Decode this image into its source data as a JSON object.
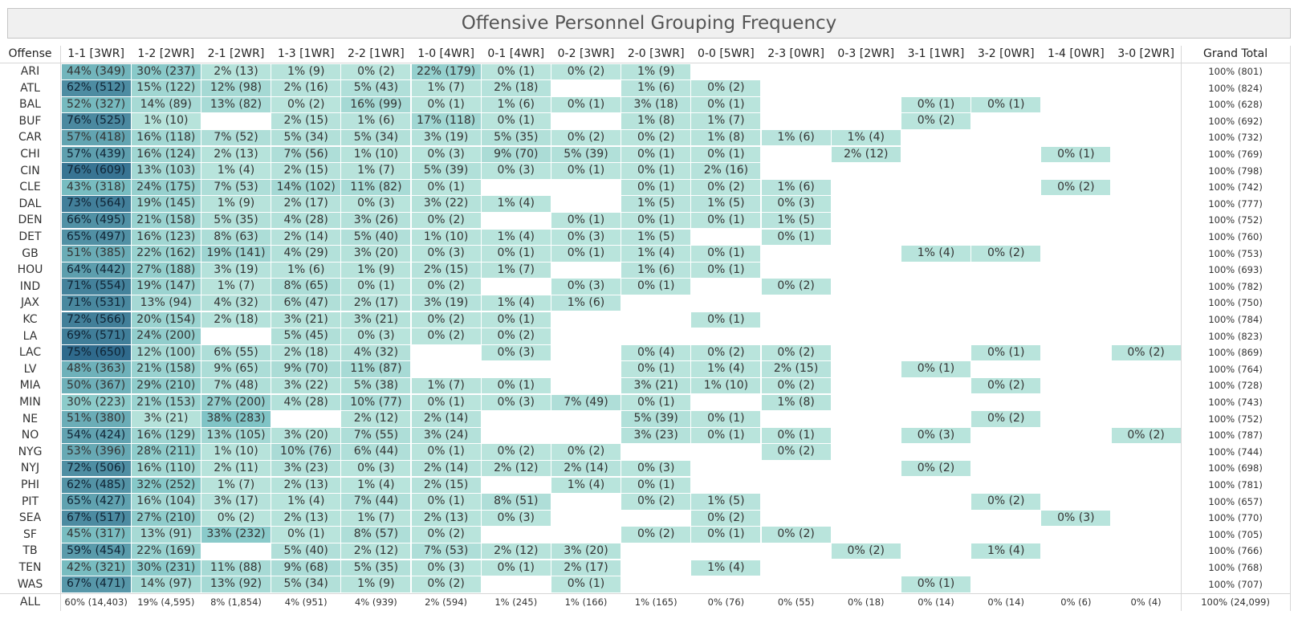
{
  "chart_data": {
    "type": "heatmap",
    "title": "Offensive Personnel Grouping Frequency",
    "row_header": "Offense",
    "columns": [
      "1-1 [3WR]",
      "1-2 [2WR]",
      "2-1 [2WR]",
      "1-3 [1WR]",
      "2-2 [1WR]",
      "1-0 [4WR]",
      "0-1 [4WR]",
      "0-2 [3WR]",
      "2-0 [3WR]",
      "0-0 [5WR]",
      "2-3 [0WR]",
      "0-3 [2WR]",
      "3-1 [1WR]",
      "3-2 [0WR]",
      "1-4 [0WR]",
      "3-0 [2WR]"
    ],
    "total_header": "Grand Total",
    "rows": [
      {
        "team": "ARI",
        "cells": [
          "44% (349)",
          "30% (237)",
          "2% (13)",
          "1% (9)",
          "0% (2)",
          "22% (179)",
          "0% (1)",
          "0% (2)",
          "1% (9)",
          "",
          "",
          "",
          "",
          "",
          "",
          ""
        ],
        "total": "100% (801)"
      },
      {
        "team": "ATL",
        "cells": [
          "62% (512)",
          "15% (122)",
          "12% (98)",
          "2% (16)",
          "5% (43)",
          "1% (7)",
          "2% (18)",
          "",
          "1% (6)",
          "0% (2)",
          "",
          "",
          "",
          "",
          "",
          ""
        ],
        "total": "100% (824)"
      },
      {
        "team": "BAL",
        "cells": [
          "52% (327)",
          "14% (89)",
          "13% (82)",
          "0% (2)",
          "16% (99)",
          "0% (1)",
          "1% (6)",
          "0% (1)",
          "3% (18)",
          "0% (1)",
          "",
          "",
          "0% (1)",
          "0% (1)",
          "",
          ""
        ],
        "total": "100% (628)"
      },
      {
        "team": "BUF",
        "cells": [
          "76% (525)",
          "1% (10)",
          "",
          "2% (15)",
          "1% (6)",
          "17% (118)",
          "0% (1)",
          "",
          "1% (8)",
          "1% (7)",
          "",
          "",
          "0% (2)",
          "",
          "",
          ""
        ],
        "total": "100% (692)"
      },
      {
        "team": "CAR",
        "cells": [
          "57% (418)",
          "16% (118)",
          "7% (52)",
          "5% (34)",
          "5% (34)",
          "3% (19)",
          "5% (35)",
          "0% (2)",
          "0% (2)",
          "1% (8)",
          "1% (6)",
          "1% (4)",
          "",
          "",
          "",
          ""
        ],
        "total": "100% (732)"
      },
      {
        "team": "CHI",
        "cells": [
          "57% (439)",
          "16% (124)",
          "2% (13)",
          "7% (56)",
          "1% (10)",
          "0% (3)",
          "9% (70)",
          "5% (39)",
          "0% (1)",
          "0% (1)",
          "",
          "2% (12)",
          "",
          "",
          "0% (1)",
          ""
        ],
        "total": "100% (769)"
      },
      {
        "team": "CIN",
        "cells": [
          "76% (609)",
          "13% (103)",
          "1% (4)",
          "2% (15)",
          "1% (7)",
          "5% (39)",
          "0% (3)",
          "0% (1)",
          "0% (1)",
          "2% (16)",
          "",
          "",
          "",
          "",
          "",
          ""
        ],
        "total": "100% (798)"
      },
      {
        "team": "CLE",
        "cells": [
          "43% (318)",
          "24% (175)",
          "7% (53)",
          "14% (102)",
          "11% (82)",
          "0% (1)",
          "",
          "",
          "0% (1)",
          "0% (2)",
          "1% (6)",
          "",
          "",
          "",
          "0% (2)",
          ""
        ],
        "total": "100% (742)"
      },
      {
        "team": "DAL",
        "cells": [
          "73% (564)",
          "19% (145)",
          "1% (9)",
          "2% (17)",
          "0% (3)",
          "3% (22)",
          "1% (4)",
          "",
          "1% (5)",
          "1% (5)",
          "0% (3)",
          "",
          "",
          "",
          "",
          ""
        ],
        "total": "100% (777)"
      },
      {
        "team": "DEN",
        "cells": [
          "66% (495)",
          "21% (158)",
          "5% (35)",
          "4% (28)",
          "3% (26)",
          "0% (2)",
          "",
          "0% (1)",
          "0% (1)",
          "0% (1)",
          "1% (5)",
          "",
          "",
          "",
          "",
          ""
        ],
        "total": "100% (752)"
      },
      {
        "team": "DET",
        "cells": [
          "65% (497)",
          "16% (123)",
          "8% (63)",
          "2% (14)",
          "5% (40)",
          "1% (10)",
          "1% (4)",
          "0% (3)",
          "1% (5)",
          "",
          "0% (1)",
          "",
          "",
          "",
          "",
          ""
        ],
        "total": "100% (760)"
      },
      {
        "team": "GB",
        "cells": [
          "51% (385)",
          "22% (162)",
          "19% (141)",
          "4% (29)",
          "3% (20)",
          "0% (3)",
          "0% (1)",
          "0% (1)",
          "1% (4)",
          "0% (1)",
          "",
          "",
          "1% (4)",
          "0% (2)",
          "",
          ""
        ],
        "total": "100% (753)"
      },
      {
        "team": "HOU",
        "cells": [
          "64% (442)",
          "27% (188)",
          "3% (19)",
          "1% (6)",
          "1% (9)",
          "2% (15)",
          "1% (7)",
          "",
          "1% (6)",
          "0% (1)",
          "",
          "",
          "",
          "",
          "",
          ""
        ],
        "total": "100% (693)"
      },
      {
        "team": "IND",
        "cells": [
          "71% (554)",
          "19% (147)",
          "1% (7)",
          "8% (65)",
          "0% (1)",
          "0% (2)",
          "",
          "0% (3)",
          "0% (1)",
          "",
          "0% (2)",
          "",
          "",
          "",
          "",
          ""
        ],
        "total": "100% (782)"
      },
      {
        "team": "JAX",
        "cells": [
          "71% (531)",
          "13% (94)",
          "4% (32)",
          "6% (47)",
          "2% (17)",
          "3% (19)",
          "1% (4)",
          "1% (6)",
          "",
          "",
          "",
          "",
          "",
          "",
          "",
          ""
        ],
        "total": "100% (750)"
      },
      {
        "team": "KC",
        "cells": [
          "72% (566)",
          "20% (154)",
          "2% (18)",
          "3% (21)",
          "3% (21)",
          "0% (2)",
          "0% (1)",
          "",
          "",
          "0% (1)",
          "",
          "",
          "",
          "",
          "",
          ""
        ],
        "total": "100% (784)"
      },
      {
        "team": "LA",
        "cells": [
          "69% (571)",
          "24% (200)",
          "",
          "5% (45)",
          "0% (3)",
          "0% (2)",
          "0% (2)",
          "",
          "",
          "",
          "",
          "",
          "",
          "",
          "",
          ""
        ],
        "total": "100% (823)"
      },
      {
        "team": "LAC",
        "cells": [
          "75% (650)",
          "12% (100)",
          "6% (55)",
          "2% (18)",
          "4% (32)",
          "",
          "0% (3)",
          "",
          "0% (4)",
          "0% (2)",
          "0% (2)",
          "",
          "",
          "0% (1)",
          "",
          "0% (2)"
        ],
        "total": "100% (869)"
      },
      {
        "team": "LV",
        "cells": [
          "48% (363)",
          "21% (158)",
          "9% (65)",
          "9% (70)",
          "11% (87)",
          "",
          "",
          "",
          "0% (1)",
          "1% (4)",
          "2% (15)",
          "",
          "0% (1)",
          "",
          "",
          ""
        ],
        "total": "100% (764)"
      },
      {
        "team": "MIA",
        "cells": [
          "50% (367)",
          "29% (210)",
          "7% (48)",
          "3% (22)",
          "5% (38)",
          "1% (7)",
          "0% (1)",
          "",
          "3% (21)",
          "1% (10)",
          "0% (2)",
          "",
          "",
          "0% (2)",
          "",
          ""
        ],
        "total": "100% (728)"
      },
      {
        "team": "MIN",
        "cells": [
          "30% (223)",
          "21% (153)",
          "27% (200)",
          "4% (28)",
          "10% (77)",
          "0% (1)",
          "0% (3)",
          "7% (49)",
          "0% (1)",
          "",
          "1% (8)",
          "",
          "",
          "",
          "",
          ""
        ],
        "total": "100% (743)"
      },
      {
        "team": "NE",
        "cells": [
          "51% (380)",
          "3% (21)",
          "38% (283)",
          "",
          "2% (12)",
          "2% (14)",
          "",
          "",
          "5% (39)",
          "0% (1)",
          "",
          "",
          "",
          "0% (2)",
          "",
          ""
        ],
        "total": "100% (752)"
      },
      {
        "team": "NO",
        "cells": [
          "54% (424)",
          "16% (129)",
          "13% (105)",
          "3% (20)",
          "7% (55)",
          "3% (24)",
          "",
          "",
          "3% (23)",
          "0% (1)",
          "0% (1)",
          "",
          "0% (3)",
          "",
          "",
          "0% (2)"
        ],
        "total": "100% (787)"
      },
      {
        "team": "NYG",
        "cells": [
          "53% (396)",
          "28% (211)",
          "1% (10)",
          "10% (76)",
          "6% (44)",
          "0% (1)",
          "0% (2)",
          "0% (2)",
          "",
          "",
          "0% (2)",
          "",
          "",
          "",
          "",
          ""
        ],
        "total": "100% (744)"
      },
      {
        "team": "NYJ",
        "cells": [
          "72% (506)",
          "16% (110)",
          "2% (11)",
          "3% (23)",
          "0% (3)",
          "2% (14)",
          "2% (12)",
          "2% (14)",
          "0% (3)",
          "",
          "",
          "",
          "0% (2)",
          "",
          "",
          ""
        ],
        "total": "100% (698)"
      },
      {
        "team": "PHI",
        "cells": [
          "62% (485)",
          "32% (252)",
          "1% (7)",
          "2% (13)",
          "1% (4)",
          "2% (15)",
          "",
          "1% (4)",
          "0% (1)",
          "",
          "",
          "",
          "",
          "",
          "",
          ""
        ],
        "total": "100% (781)"
      },
      {
        "team": "PIT",
        "cells": [
          "65% (427)",
          "16% (104)",
          "3% (17)",
          "1% (4)",
          "7% (44)",
          "0% (1)",
          "8% (51)",
          "",
          "0% (2)",
          "1% (5)",
          "",
          "",
          "",
          "0% (2)",
          "",
          ""
        ],
        "total": "100% (657)"
      },
      {
        "team": "SEA",
        "cells": [
          "67% (517)",
          "27% (210)",
          "0% (2)",
          "2% (13)",
          "1% (7)",
          "2% (13)",
          "0% (3)",
          "",
          "",
          "0% (2)",
          "",
          "",
          "",
          "",
          "0% (3)",
          ""
        ],
        "total": "100% (770)"
      },
      {
        "team": "SF",
        "cells": [
          "45% (317)",
          "13% (91)",
          "33% (232)",
          "0% (1)",
          "8% (57)",
          "0% (2)",
          "",
          "",
          "0% (2)",
          "0% (1)",
          "0% (2)",
          "",
          "",
          "",
          "",
          ""
        ],
        "total": "100% (705)"
      },
      {
        "team": "TB",
        "cells": [
          "59% (454)",
          "22% (169)",
          "",
          "5% (40)",
          "2% (12)",
          "7% (53)",
          "2% (12)",
          "3% (20)",
          "",
          "",
          "",
          "0% (2)",
          "",
          "1% (4)",
          "",
          ""
        ],
        "total": "100% (766)"
      },
      {
        "team": "TEN",
        "cells": [
          "42% (321)",
          "30% (231)",
          "11% (88)",
          "9% (68)",
          "5% (35)",
          "0% (3)",
          "0% (1)",
          "2% (17)",
          "",
          "1% (4)",
          "",
          "",
          "",
          "",
          "",
          ""
        ],
        "total": "100% (768)"
      },
      {
        "team": "WAS",
        "cells": [
          "67% (471)",
          "14% (97)",
          "13% (92)",
          "5% (34)",
          "1% (9)",
          "0% (2)",
          "",
          "0% (1)",
          "",
          "",
          "",
          "",
          "0% (1)",
          "",
          "",
          ""
        ],
        "total": "100% (707)"
      }
    ],
    "all_row": {
      "label": "ALL",
      "cells": [
        "60% (14,403)",
        "19% (4,595)",
        "8% (1,854)",
        "4% (951)",
        "4% (939)",
        "2% (594)",
        "1% (245)",
        "1% (166)",
        "1% (165)",
        "0% (76)",
        "0% (55)",
        "0% (18)",
        "0% (14)",
        "0% (14)",
        "0% (6)",
        "0% (4)"
      ],
      "total": "100% (24,099)"
    },
    "color_scale": {
      "low": "#b9e4dc",
      "mid": "#7ec3c5",
      "high": "#2f6a8c"
    }
  }
}
